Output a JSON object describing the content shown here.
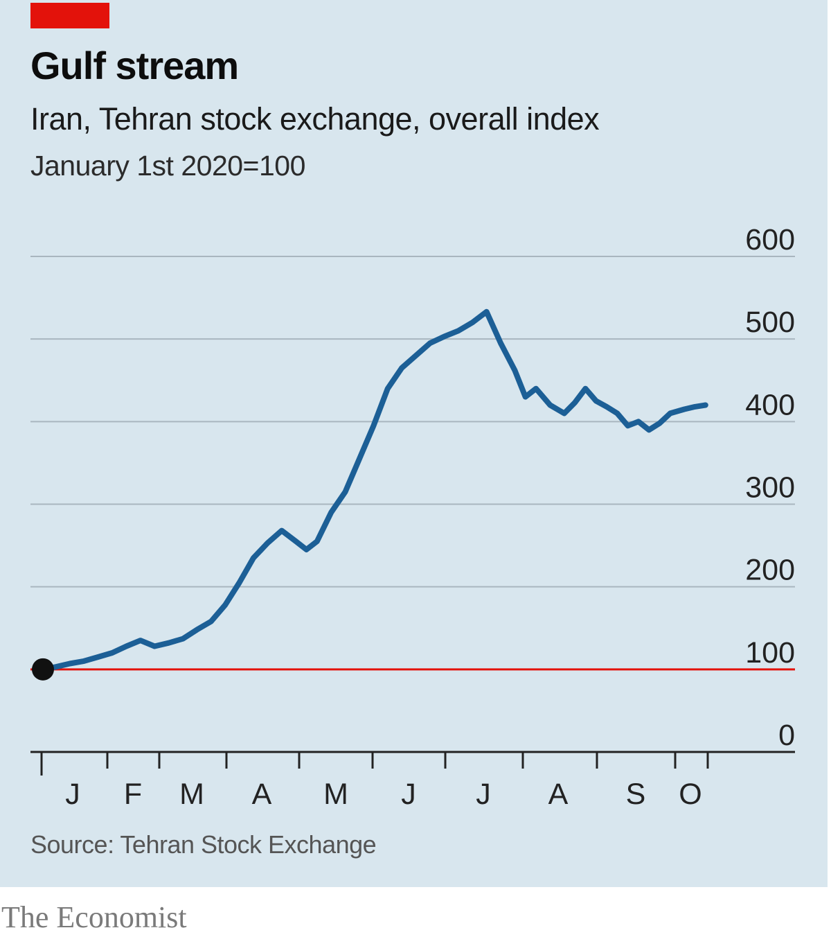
{
  "header": {
    "title": "Gulf stream",
    "subtitle": "Iran, Tehran stock exchange, overall index",
    "unit": "January 1st 2020=100"
  },
  "footer": {
    "source": "Source: Tehran Stock Exchange",
    "brand": "The Economist"
  },
  "colors": {
    "background": "#d8e6ee",
    "line": "#1c5f96",
    "baseline": "#e3120b",
    "tag": "#e3120b"
  },
  "chart_data": {
    "type": "line",
    "title": "Gulf stream",
    "subtitle": "Iran, Tehran stock exchange, overall index",
    "unit_note": "January 1st 2020=100",
    "x_tick_labels": [
      "J",
      "F",
      "M",
      "A",
      "M",
      "J",
      "J",
      "A",
      "S",
      "O"
    ],
    "x_month_numbers": [
      1,
      2,
      3,
      4,
      5,
      6,
      7,
      8,
      9,
      10
    ],
    "ylim": [
      0,
      600
    ],
    "y_ticks": [
      0,
      100,
      200,
      300,
      400,
      500,
      600
    ],
    "y_tick_labels": [
      "0",
      "100",
      "200",
      "300",
      "400",
      "500",
      "600"
    ],
    "y_axis_side": "right",
    "reference_line": 100,
    "start_marker": {
      "month": 1.0,
      "value": 100
    },
    "series": [
      {
        "name": "Tehran stock exchange overall index",
        "x_month": [
          1.0,
          1.2,
          1.4,
          1.6,
          1.8,
          2.0,
          2.2,
          2.4,
          2.6,
          2.8,
          3.0,
          3.2,
          3.4,
          3.6,
          3.8,
          4.0,
          4.2,
          4.4,
          4.6,
          4.75,
          4.9,
          5.1,
          5.3,
          5.5,
          5.7,
          5.9,
          6.1,
          6.3,
          6.5,
          6.7,
          6.9,
          7.1,
          7.3,
          7.5,
          7.7,
          7.85,
          8.0,
          8.2,
          8.4,
          8.55,
          8.7,
          8.85,
          9.0,
          9.15,
          9.3,
          9.45,
          9.6,
          9.75,
          9.9,
          10.1,
          10.25,
          10.4
        ],
        "values": [
          100,
          103,
          107,
          110,
          115,
          120,
          128,
          135,
          128,
          132,
          137,
          148,
          158,
          178,
          205,
          235,
          253,
          268,
          255,
          245,
          255,
          290,
          315,
          355,
          395,
          440,
          465,
          480,
          495,
          503,
          510,
          520,
          533,
          495,
          462,
          430,
          440,
          420,
          410,
          423,
          440,
          425,
          418,
          410,
          395,
          400,
          390,
          398,
          410,
          415,
          418,
          420
        ]
      }
    ]
  }
}
